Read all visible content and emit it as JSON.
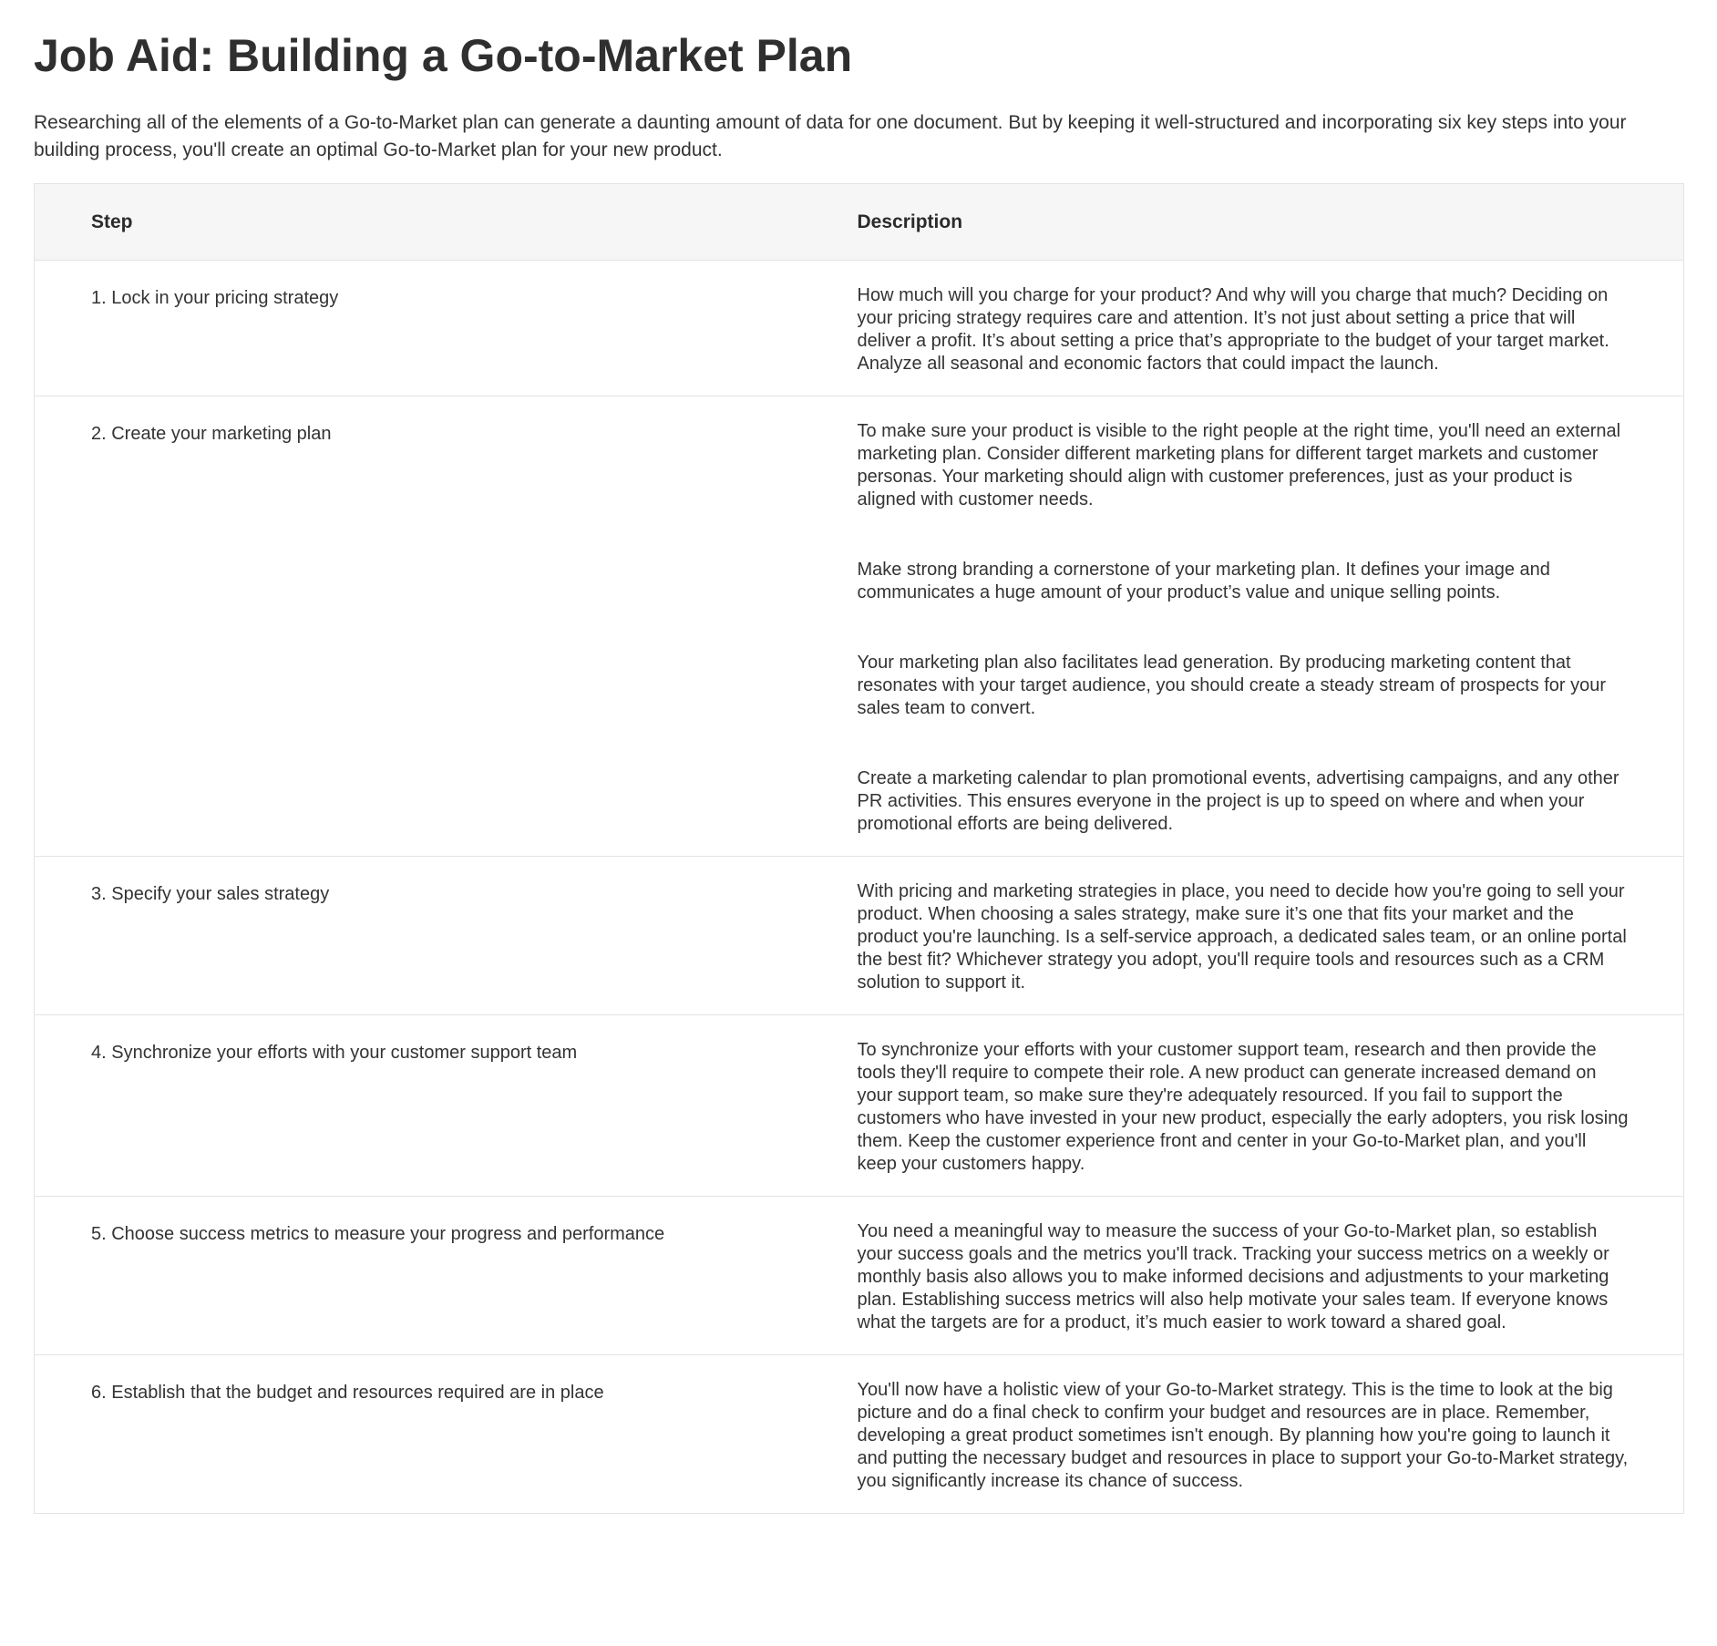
{
  "title": "Job Aid: Building a Go-to-Market Plan",
  "intro": "Researching all of the elements of a Go-to-Market plan can generate a daunting amount of data for one document. But by keeping it well-structured and incorporating six key steps into your building process, you'll create an optimal Go-to-Market plan for your new product.",
  "table": {
    "headers": {
      "step": "Step",
      "description": "Description"
    },
    "rows": [
      {
        "step": "1. Lock in your pricing strategy",
        "paragraphs": [
          "How much will you charge for your product? And why will you charge that much? Deciding on your pricing strategy requires care and attention. It’s not just about setting a price that will deliver a profit. It’s about setting a price that’s appropriate to the budget of your target market. Analyze all seasonal and economic factors that could impact the launch."
        ]
      },
      {
        "step": "2. Create your marketing plan",
        "paragraphs": [
          "To make sure your product is visible to the right people at the right time, you'll need an external marketing plan. Consider different marketing plans for different target markets and customer personas. Your marketing should align with customer preferences, just as your product is aligned with customer needs.",
          "Make strong branding a cornerstone of your marketing plan. It defines your image and communicates a huge amount of your product’s value and unique selling points.",
          "Your marketing plan also facilitates lead generation. By producing marketing content that resonates with your target audience, you should create a steady stream of prospects for your sales team to convert.",
          "Create a marketing calendar to plan promotional events, advertising campaigns, and any other PR activities. This ensures everyone in the project is up to speed on where and when your promotional efforts are being delivered."
        ]
      },
      {
        "step": "3. Specify your sales strategy",
        "paragraphs": [
          "With pricing and marketing strategies in place, you need to decide how you're going to sell your product. When choosing a sales strategy, make sure it’s one that fits your market and the product you're launching. Is a self-service approach, a dedicated sales team, or an online portal the best fit? Whichever strategy you adopt, you'll require tools and resources such as a CRM solution to support it."
        ]
      },
      {
        "step": "4. Synchronize your efforts with your customer support team",
        "paragraphs": [
          "To synchronize your efforts with your customer support team, research and then provide the tools they'll require to compete their role. A new product can generate increased demand on your support team, so make sure they're adequately resourced. If you fail to support the customers who have invested in your new product, especially the early adopters, you risk losing them. Keep the customer experience front and center in your Go-to-Market plan, and you'll keep your customers happy."
        ]
      },
      {
        "step": "5. Choose success metrics to measure your progress and performance",
        "paragraphs": [
          "You need a meaningful way to measure the success of your Go-to-Market plan, so establish your success goals and the metrics you'll track. Tracking your success metrics on a weekly or monthly basis also allows you to make informed decisions and adjustments to your marketing plan. Establishing success metrics will also help motivate your sales team. If everyone knows what the targets are for a product, it’s much easier to work toward a shared goal."
        ]
      },
      {
        "step": "6. Establish that the budget and resources required are in place",
        "paragraphs": [
          "You'll now have a holistic view of your Go-to-Market strategy. This is the time to look at the big picture and do a final check to confirm your budget and resources are in place. Remember, developing a great product sometimes isn't enough. By planning how you're going to launch it and putting the necessary budget and resources in place to support your Go-to-Market strategy, you significantly increase its chance of success."
        ]
      }
    ]
  }
}
